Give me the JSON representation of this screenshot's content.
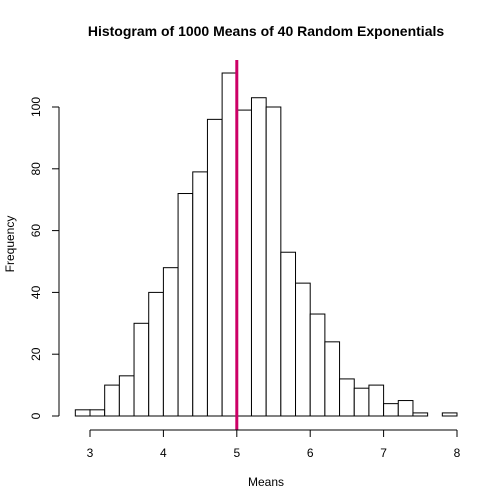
{
  "chart_data": {
    "type": "histogram",
    "title": "Histogram of 1000 Means of 40 Random Exponentials",
    "xlabel": "Means",
    "ylabel": "Frequency",
    "xlim": [
      2.8,
      8.0
    ],
    "ylim": [
      0,
      115
    ],
    "bin_width": 0.2,
    "bins": [
      {
        "start": 2.8,
        "end": 3.0,
        "count": 2
      },
      {
        "start": 3.0,
        "end": 3.2,
        "count": 2
      },
      {
        "start": 3.2,
        "end": 3.4,
        "count": 10
      },
      {
        "start": 3.4,
        "end": 3.6,
        "count": 13
      },
      {
        "start": 3.6,
        "end": 3.8,
        "count": 30
      },
      {
        "start": 3.8,
        "end": 4.0,
        "count": 40
      },
      {
        "start": 4.0,
        "end": 4.2,
        "count": 48
      },
      {
        "start": 4.2,
        "end": 4.4,
        "count": 72
      },
      {
        "start": 4.4,
        "end": 4.6,
        "count": 79
      },
      {
        "start": 4.6,
        "end": 4.8,
        "count": 96
      },
      {
        "start": 4.8,
        "end": 5.0,
        "count": 111
      },
      {
        "start": 5.0,
        "end": 5.2,
        "count": 99
      },
      {
        "start": 5.2,
        "end": 5.4,
        "count": 103
      },
      {
        "start": 5.4,
        "end": 5.6,
        "count": 100
      },
      {
        "start": 5.6,
        "end": 5.8,
        "count": 53
      },
      {
        "start": 5.8,
        "end": 6.0,
        "count": 43
      },
      {
        "start": 6.0,
        "end": 6.2,
        "count": 33
      },
      {
        "start": 6.2,
        "end": 6.4,
        "count": 24
      },
      {
        "start": 6.4,
        "end": 6.6,
        "count": 12
      },
      {
        "start": 6.6,
        "end": 6.8,
        "count": 9
      },
      {
        "start": 6.8,
        "end": 7.0,
        "count": 10
      },
      {
        "start": 7.0,
        "end": 7.2,
        "count": 4
      },
      {
        "start": 7.2,
        "end": 7.4,
        "count": 5
      },
      {
        "start": 7.4,
        "end": 7.6,
        "count": 1
      },
      {
        "start": 7.6,
        "end": 7.8,
        "count": 0
      },
      {
        "start": 7.8,
        "end": 8.0,
        "count": 1
      }
    ],
    "x_ticks": [
      3,
      4,
      5,
      6,
      7,
      8
    ],
    "y_ticks": [
      0,
      20,
      40,
      60,
      80,
      100
    ],
    "reference_line": {
      "x": 5,
      "color": "#cc0066"
    },
    "bar_fill": "#ffffff",
    "bar_stroke": "#000000",
    "grid": false,
    "legend": "none"
  }
}
